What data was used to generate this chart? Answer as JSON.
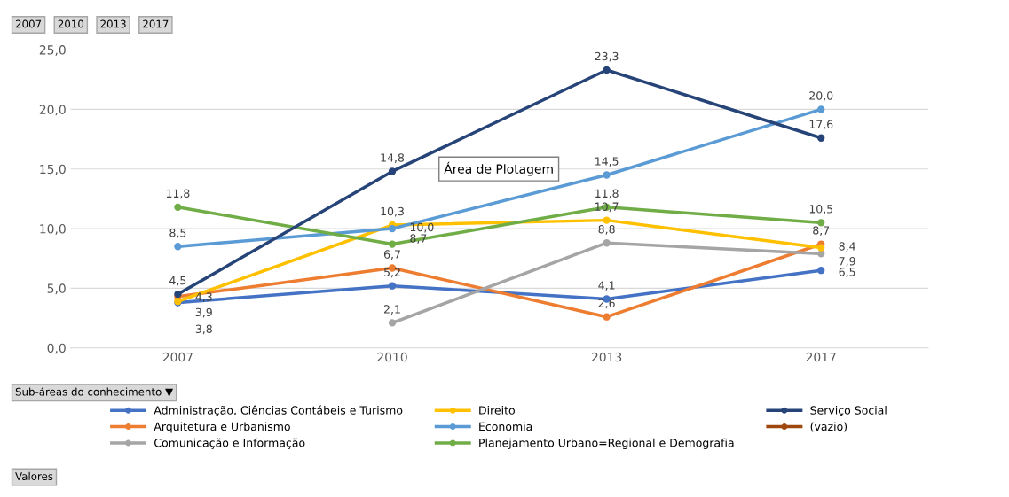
{
  "chart_data": {
    "type": "line",
    "categories": [
      "2007",
      "2010",
      "2013",
      "2017"
    ],
    "ylim": [
      0,
      25
    ],
    "yticks": [
      {
        "value": 0,
        "label": "0,0"
      },
      {
        "value": 5,
        "label": "5,0"
      },
      {
        "value": 10,
        "label": "10,0"
      },
      {
        "value": 15,
        "label": "15,0"
      },
      {
        "value": 20,
        "label": "20,0"
      },
      {
        "value": 25,
        "label": "25,0"
      }
    ],
    "grid": "y",
    "legend": "bottom",
    "marker": "circle",
    "line_style": "solid",
    "annotations": [
      "2007",
      "2010",
      "2013",
      "2017",
      "Sub-áreas do conhecimento ▼",
      "Valores",
      "Área de Plotagem"
    ],
    "series": [
      {
        "name": "Administração, Ciências Contábeis e Turismo",
        "color": "#4472c4",
        "values": [
          3.8,
          5.2,
          4.1,
          6.5
        ],
        "value_labels": [
          "3,8",
          "5,2",
          "4,1",
          "6,5"
        ]
      },
      {
        "name": "Arquitetura e Urbanismo",
        "color": "#ed7d31",
        "values": [
          4.3,
          6.7,
          2.6,
          8.7
        ],
        "value_labels": [
          "4,3",
          "6,7",
          "2,6",
          "8,7"
        ]
      },
      {
        "name": "Comunicação e Informação",
        "color": "#a5a5a5",
        "values": [
          null,
          2.1,
          8.8,
          7.9
        ],
        "value_labels": [
          null,
          "2,1",
          "8,8",
          "7,9"
        ]
      },
      {
        "name": "Direito",
        "color": "#ffc000",
        "values": [
          3.9,
          10.3,
          10.7,
          8.4
        ],
        "value_labels": [
          "3,9",
          "10,3",
          "10,7",
          "8,4"
        ]
      },
      {
        "name": "Economia",
        "color": "#5b9bd5",
        "values": [
          8.5,
          10.0,
          14.5,
          20.0
        ],
        "value_labels": [
          "8,5",
          "10,0",
          "14,5",
          "20,0"
        ]
      },
      {
        "name": "Planejamento Urbano=Regional e Demografia",
        "color": "#70ad47",
        "values": [
          11.8,
          8.7,
          11.8,
          10.5
        ],
        "value_labels": [
          "11,8",
          "8,7",
          "11,8",
          "10,5"
        ]
      },
      {
        "name": "Serviço Social",
        "color": "#264478",
        "values": [
          4.5,
          14.8,
          23.3,
          17.6
        ],
        "value_labels": [
          "4,5",
          "14,8",
          "23,3",
          "17,6"
        ]
      },
      {
        "name": "(vazio)",
        "color": "#9e480e",
        "values": [
          null,
          null,
          null,
          null
        ]
      }
    ]
  }
}
